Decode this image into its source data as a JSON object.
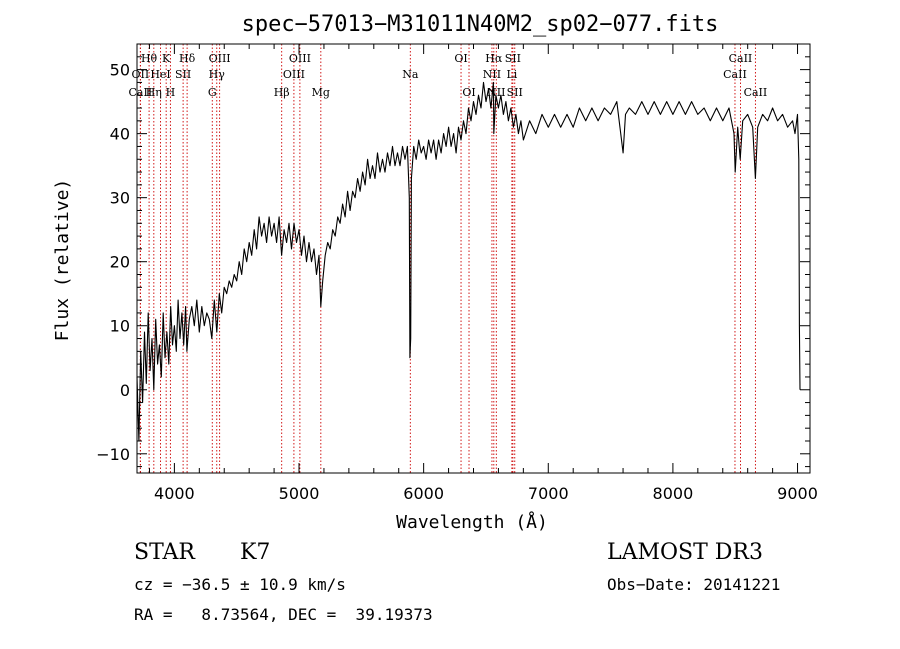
{
  "chart_data": {
    "type": "line",
    "title": "spec−57013−M31011N40M2_sp02−077.fits",
    "xlabel": "Wavelength (Å)",
    "ylabel": "Flux (relative)",
    "xlim": [
      3700,
      9100
    ],
    "ylim": [
      -13,
      54
    ],
    "x_ticks": [
      4000,
      5000,
      6000,
      7000,
      8000,
      9000
    ],
    "x_tick_labels": [
      "4000",
      "5000",
      "6000",
      "7000",
      "8000",
      "9000"
    ],
    "y_ticks": [
      -10,
      0,
      10,
      20,
      30,
      40,
      50
    ],
    "y_tick_labels": [
      "−10",
      "0",
      "10",
      "20",
      "30",
      "40",
      "50"
    ],
    "line_color": "#000000",
    "marker_color": "#cc0000",
    "series": [
      {
        "name": "flux",
        "points": [
          [
            3700,
            2
          ],
          [
            3715,
            -8
          ],
          [
            3730,
            6
          ],
          [
            3745,
            -2
          ],
          [
            3760,
            9
          ],
          [
            3775,
            1
          ],
          [
            3790,
            12
          ],
          [
            3805,
            3
          ],
          [
            3820,
            8
          ],
          [
            3835,
            0
          ],
          [
            3850,
            11
          ],
          [
            3865,
            4
          ],
          [
            3880,
            7
          ],
          [
            3895,
            2
          ],
          [
            3910,
            12
          ],
          [
            3925,
            5
          ],
          [
            3940,
            9
          ],
          [
            3955,
            4
          ],
          [
            3970,
            13
          ],
          [
            3985,
            7
          ],
          [
            4000,
            10
          ],
          [
            4015,
            6
          ],
          [
            4030,
            14
          ],
          [
            4045,
            8
          ],
          [
            4060,
            12
          ],
          [
            4075,
            7
          ],
          [
            4090,
            13
          ],
          [
            4100,
            6
          ],
          [
            4120,
            11
          ],
          [
            4140,
            13
          ],
          [
            4160,
            10
          ],
          [
            4180,
            14
          ],
          [
            4200,
            9
          ],
          [
            4220,
            13
          ],
          [
            4240,
            10
          ],
          [
            4260,
            12
          ],
          [
            4280,
            11
          ],
          [
            4300,
            8
          ],
          [
            4320,
            14
          ],
          [
            4340,
            9
          ],
          [
            4360,
            15
          ],
          [
            4380,
            12
          ],
          [
            4400,
            16
          ],
          [
            4420,
            15
          ],
          [
            4440,
            17
          ],
          [
            4460,
            16
          ],
          [
            4480,
            18
          ],
          [
            4500,
            17
          ],
          [
            4520,
            20
          ],
          [
            4540,
            18
          ],
          [
            4560,
            22
          ],
          [
            4580,
            20
          ],
          [
            4600,
            23
          ],
          [
            4620,
            21
          ],
          [
            4640,
            25
          ],
          [
            4660,
            22
          ],
          [
            4680,
            27
          ],
          [
            4700,
            24
          ],
          [
            4720,
            26
          ],
          [
            4740,
            23
          ],
          [
            4760,
            27
          ],
          [
            4780,
            24
          ],
          [
            4800,
            26
          ],
          [
            4820,
            23
          ],
          [
            4840,
            27
          ],
          [
            4860,
            21
          ],
          [
            4880,
            25
          ],
          [
            4900,
            23
          ],
          [
            4920,
            26
          ],
          [
            4940,
            22
          ],
          [
            4960,
            26
          ],
          [
            4980,
            23
          ],
          [
            5000,
            25
          ],
          [
            5020,
            21
          ],
          [
            5040,
            24
          ],
          [
            5060,
            20
          ],
          [
            5080,
            23
          ],
          [
            5100,
            20
          ],
          [
            5120,
            22
          ],
          [
            5140,
            18
          ],
          [
            5160,
            21
          ],
          [
            5175,
            13
          ],
          [
            5190,
            17
          ],
          [
            5210,
            21
          ],
          [
            5230,
            23
          ],
          [
            5250,
            22
          ],
          [
            5270,
            25
          ],
          [
            5290,
            24
          ],
          [
            5310,
            27
          ],
          [
            5330,
            26
          ],
          [
            5350,
            29
          ],
          [
            5370,
            27
          ],
          [
            5390,
            31
          ],
          [
            5410,
            28
          ],
          [
            5430,
            31
          ],
          [
            5450,
            30
          ],
          [
            5470,
            33
          ],
          [
            5490,
            31
          ],
          [
            5510,
            34
          ],
          [
            5530,
            32
          ],
          [
            5550,
            36
          ],
          [
            5570,
            33
          ],
          [
            5590,
            35
          ],
          [
            5610,
            33
          ],
          [
            5630,
            37
          ],
          [
            5650,
            34
          ],
          [
            5670,
            36
          ],
          [
            5690,
            34
          ],
          [
            5710,
            37
          ],
          [
            5730,
            35
          ],
          [
            5750,
            38
          ],
          [
            5770,
            35
          ],
          [
            5790,
            37
          ],
          [
            5810,
            35
          ],
          [
            5830,
            38
          ],
          [
            5850,
            36
          ],
          [
            5870,
            38
          ],
          [
            5885,
            30
          ],
          [
            5890,
            5
          ],
          [
            5896,
            8
          ],
          [
            5902,
            33
          ],
          [
            5920,
            38
          ],
          [
            5940,
            36
          ],
          [
            5960,
            39
          ],
          [
            5980,
            37
          ],
          [
            6000,
            38
          ],
          [
            6020,
            36
          ],
          [
            6040,
            39
          ],
          [
            6060,
            37
          ],
          [
            6080,
            39
          ],
          [
            6100,
            36
          ],
          [
            6120,
            39
          ],
          [
            6140,
            37
          ],
          [
            6160,
            40
          ],
          [
            6180,
            38
          ],
          [
            6200,
            41
          ],
          [
            6220,
            38
          ],
          [
            6240,
            40
          ],
          [
            6260,
            37
          ],
          [
            6280,
            41
          ],
          [
            6300,
            39
          ],
          [
            6320,
            42
          ],
          [
            6340,
            40
          ],
          [
            6360,
            44
          ],
          [
            6380,
            42
          ],
          [
            6400,
            45
          ],
          [
            6420,
            43
          ],
          [
            6440,
            46
          ],
          [
            6460,
            44
          ],
          [
            6480,
            48
          ],
          [
            6500,
            45
          ],
          [
            6520,
            47
          ],
          [
            6540,
            44
          ],
          [
            6560,
            48
          ],
          [
            6563,
            40
          ],
          [
            6580,
            46
          ],
          [
            6600,
            44
          ],
          [
            6620,
            46
          ],
          [
            6640,
            43
          ],
          [
            6660,
            45
          ],
          [
            6680,
            42
          ],
          [
            6700,
            44
          ],
          [
            6720,
            41
          ],
          [
            6740,
            43
          ],
          [
            6760,
            40
          ],
          [
            6780,
            42
          ],
          [
            6800,
            39
          ],
          [
            6850,
            42
          ],
          [
            6900,
            40
          ],
          [
            6950,
            43
          ],
          [
            7000,
            41
          ],
          [
            7050,
            43
          ],
          [
            7100,
            41
          ],
          [
            7150,
            43
          ],
          [
            7200,
            41
          ],
          [
            7250,
            44
          ],
          [
            7300,
            42
          ],
          [
            7350,
            44
          ],
          [
            7400,
            42
          ],
          [
            7450,
            44
          ],
          [
            7500,
            43
          ],
          [
            7550,
            45
          ],
          [
            7600,
            37
          ],
          [
            7620,
            43
          ],
          [
            7650,
            44
          ],
          [
            7700,
            43
          ],
          [
            7750,
            45
          ],
          [
            7800,
            43
          ],
          [
            7850,
            45
          ],
          [
            7900,
            43
          ],
          [
            7950,
            45
          ],
          [
            8000,
            43
          ],
          [
            8050,
            45
          ],
          [
            8100,
            43
          ],
          [
            8150,
            45
          ],
          [
            8200,
            43
          ],
          [
            8250,
            44
          ],
          [
            8300,
            42
          ],
          [
            8350,
            44
          ],
          [
            8400,
            42
          ],
          [
            8450,
            44
          ],
          [
            8490,
            40
          ],
          [
            8500,
            34
          ],
          [
            8520,
            41
          ],
          [
            8540,
            36
          ],
          [
            8560,
            42
          ],
          [
            8600,
            43
          ],
          [
            8640,
            41
          ],
          [
            8662,
            33
          ],
          [
            8680,
            41
          ],
          [
            8720,
            43
          ],
          [
            8760,
            42
          ],
          [
            8800,
            44
          ],
          [
            8840,
            42
          ],
          [
            8880,
            43
          ],
          [
            8920,
            41
          ],
          [
            8960,
            42
          ],
          [
            8980,
            40
          ],
          [
            9000,
            43
          ],
          [
            9010,
            36
          ],
          [
            9015,
            10
          ],
          [
            9020,
            0
          ]
        ]
      }
    ],
    "lines": [
      {
        "label": "Hθ",
        "x": 3797,
        "row": 1
      },
      {
        "label": "OII",
        "x": 3727,
        "row": 2
      },
      {
        "label": "CaII",
        "x": 3727,
        "row": 3
      },
      {
        "label": "Hη",
        "x": 3835,
        "row": 3
      },
      {
        "label": "K",
        "x": 3934,
        "row": 1
      },
      {
        "label": "HeI",
        "x": 3889,
        "row": 2
      },
      {
        "label": "H",
        "x": 3968,
        "row": 3
      },
      {
        "label": "Hδ",
        "x": 4102,
        "row": 1
      },
      {
        "label": "SII",
        "x": 4070,
        "row": 2
      },
      {
        "label": "OIII",
        "x": 4363,
        "row": 1
      },
      {
        "label": "Hγ",
        "x": 4340,
        "row": 2
      },
      {
        "label": "G",
        "x": 4304,
        "row": 3
      },
      {
        "label": "OIII",
        "x": 5007,
        "row": 1
      },
      {
        "label": "OIII",
        "x": 4959,
        "row": 2
      },
      {
        "label": "Hβ",
        "x": 4861,
        "row": 3
      },
      {
        "label": "Mg",
        "x": 5175,
        "row": 3
      },
      {
        "label": "Na",
        "x": 5893,
        "row": 2
      },
      {
        "label": "OI",
        "x": 6300,
        "row": 1
      },
      {
        "label": "OI",
        "x": 6364,
        "row": 3
      },
      {
        "label": "Hα",
        "x": 6563,
        "row": 1
      },
      {
        "label": "NII",
        "x": 6548,
        "row": 2
      },
      {
        "label": "NII",
        "x": 6583,
        "row": 3
      },
      {
        "label": "SII",
        "x": 6716,
        "row": 1
      },
      {
        "label": "Li",
        "x": 6708,
        "row": 2
      },
      {
        "label": "SII",
        "x": 6731,
        "row": 3
      },
      {
        "label": "CaII",
        "x": 8542,
        "row": 1
      },
      {
        "label": "CaII",
        "x": 8498,
        "row": 2
      },
      {
        "label": "CaII",
        "x": 8662,
        "row": 3
      }
    ]
  },
  "info": {
    "object_class": "STAR",
    "subclass": "K7",
    "survey": "LAMOST DR3",
    "cz": "cz = −36.5 ± 10.9 km/s",
    "obs_date": "Obs−Date: 20141221",
    "coords": "RA =   8.73564, DEC =  39.19373"
  }
}
